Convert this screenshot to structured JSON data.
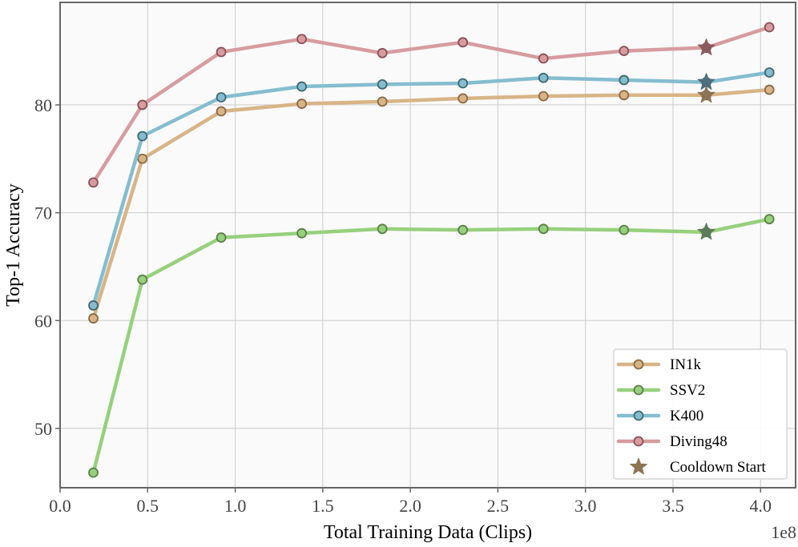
{
  "chart_data": {
    "type": "line",
    "xlabel": "Total Training Data (Clips)",
    "ylabel": "Top-1 Accuracy",
    "x_multiplier_label": "1e8",
    "xlim": [
      0.0,
      4.2
    ],
    "ylim": [
      44.5,
      89.5
    ],
    "xticks": [
      0.0,
      0.5,
      1.0,
      1.5,
      2.0,
      2.5,
      3.0,
      3.5,
      4.0
    ],
    "xtick_labels": [
      "0.0",
      "0.5",
      "1.0",
      "1.5",
      "2.0",
      "2.5",
      "3.0",
      "3.5",
      "4.0"
    ],
    "yticks": [
      50,
      60,
      70,
      80
    ],
    "ytick_labels": [
      "50",
      "60",
      "70",
      "80"
    ],
    "grid": true,
    "legend_position": "bottom-right",
    "x": [
      0.19,
      0.47,
      0.92,
      1.38,
      1.84,
      2.3,
      2.76,
      3.22,
      3.69,
      4.05
    ],
    "series": [
      {
        "name": "IN1k",
        "color": "#d8b487",
        "edge": "#8a6a45",
        "values": [
          60.2,
          75.0,
          79.4,
          80.1,
          80.3,
          80.6,
          80.8,
          80.9,
          80.9,
          81.4
        ]
      },
      {
        "name": "SSV2",
        "color": "#97d07d",
        "edge": "#5a7f47",
        "values": [
          45.9,
          63.8,
          67.7,
          68.1,
          68.5,
          68.4,
          68.5,
          68.4,
          68.2,
          69.4
        ]
      },
      {
        "name": "K400",
        "color": "#85bdcf",
        "edge": "#3f6773",
        "values": [
          61.4,
          77.1,
          80.7,
          81.7,
          81.9,
          82.0,
          82.5,
          82.3,
          82.1,
          83.0
        ]
      },
      {
        "name": "Diving48",
        "color": "#d69ca0",
        "edge": "#8a5056",
        "values": [
          72.8,
          80.0,
          84.9,
          86.1,
          84.8,
          85.8,
          84.3,
          85.0,
          85.3,
          87.2
        ]
      }
    ],
    "cooldown": {
      "name": "Cooldown Start",
      "color": "#8c7457",
      "x": 3.69,
      "values": [
        80.9,
        68.2,
        82.1,
        85.3
      ],
      "marker_colors": [
        "#8c7457",
        "#5e7a5a",
        "#4f6f7b",
        "#8a5a5f"
      ]
    }
  }
}
